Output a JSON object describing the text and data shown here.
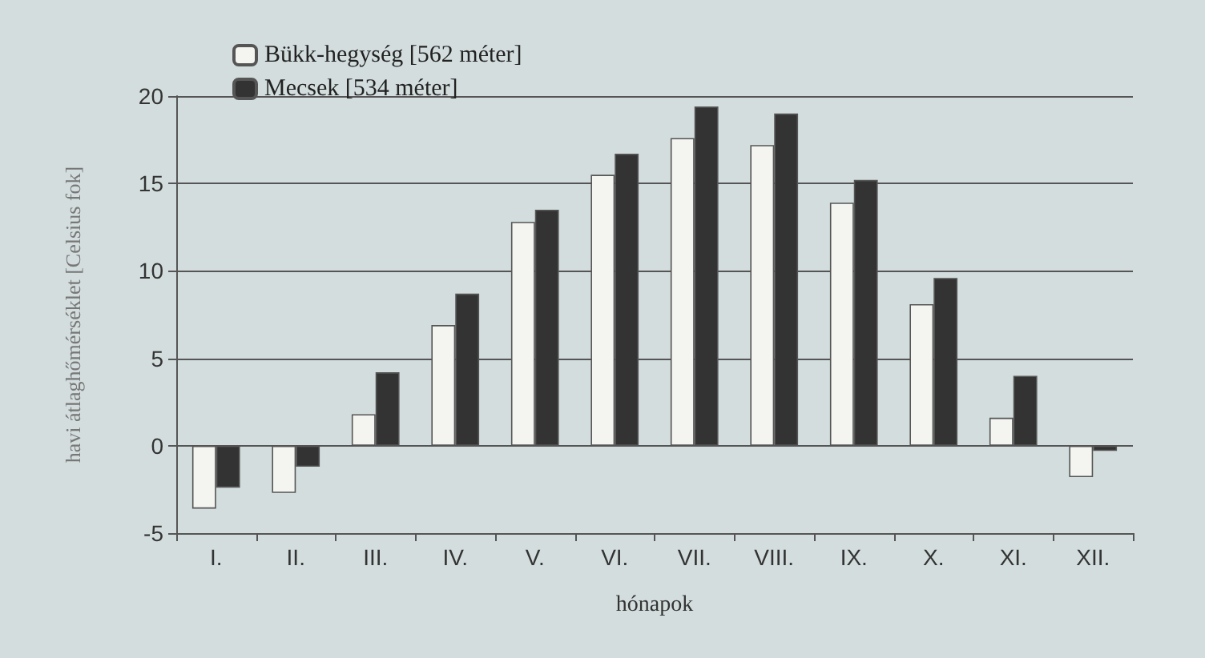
{
  "chart_data": {
    "type": "bar",
    "xlabel": "hónapok",
    "ylabel": "havi átlaghőmérséklet [Celsius fok]",
    "categories": [
      "I.",
      "II.",
      "III.",
      "IV.",
      "V.",
      "VI.",
      "VII.",
      "VIII.",
      "IX.",
      "X.",
      "XI.",
      "XII."
    ],
    "series": [
      {
        "name": "Bükk-hegység [562 méter]",
        "color": "#f4f4f0",
        "values": [
          -3.6,
          -2.7,
          1.8,
          6.9,
          12.8,
          15.5,
          17.6,
          17.2,
          13.9,
          8.1,
          1.6,
          -1.8
        ]
      },
      {
        "name": "Mecsek [534 méter]",
        "color": "#333333",
        "values": [
          -2.4,
          -1.2,
          4.2,
          8.7,
          13.5,
          16.7,
          19.4,
          19.0,
          15.2,
          9.6,
          4.0,
          -0.3
        ]
      }
    ],
    "ylim": [
      -5,
      20
    ],
    "yticks": [
      -5,
      0,
      5,
      10,
      15,
      20
    ],
    "grid": "y",
    "legend": "top left"
  }
}
